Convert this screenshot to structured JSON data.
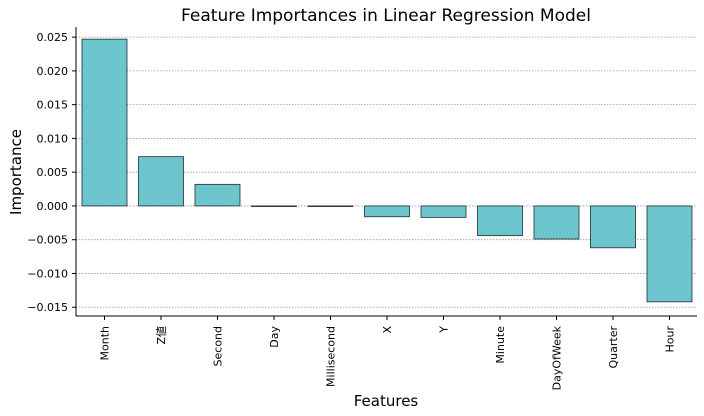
{
  "chart_data": {
    "type": "bar",
    "title": "Feature Importances in Linear Regression Model",
    "xlabel": "Features",
    "ylabel": "Importance",
    "categories": [
      "Month",
      "Z値",
      "Second",
      "Day",
      "Millisecond",
      "X",
      "Y",
      "Minute",
      "DayOfWeek",
      "Quarter",
      "Hour"
    ],
    "values": [
      0.0247,
      0.0073,
      0.0032,
      0.0,
      0.0,
      -0.0016,
      -0.0017,
      -0.0044,
      -0.0049,
      -0.0062,
      -0.0142
    ],
    "ylim": [
      -0.0163,
      0.0265
    ],
    "yticks": [
      0.025,
      0.02,
      0.015,
      0.01,
      0.005,
      0.0,
      -0.005,
      -0.01,
      -0.015
    ],
    "ytick_labels": [
      "0.025",
      "0.020",
      "0.015",
      "0.010",
      "0.005",
      "0.000",
      "−0.005",
      "−0.010",
      "−0.015"
    ],
    "grid": "y-dotted",
    "colors": {
      "bar": "#6cc5cc",
      "bar_edge": "#1f2f30",
      "grid": "#9a9a9a",
      "axis": "#000000"
    }
  }
}
